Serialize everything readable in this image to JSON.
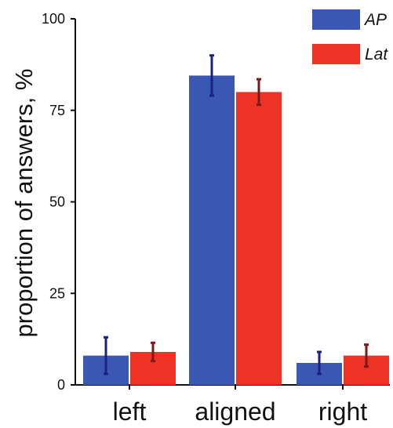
{
  "chart_data": {
    "type": "bar",
    "categories": [
      "left",
      "aligned",
      "right"
    ],
    "series": [
      {
        "name": "AP",
        "values": [
          8,
          84.5,
          6
        ],
        "errors": [
          5,
          5.5,
          3
        ],
        "color": "#3A58B3"
      },
      {
        "name": "Lat",
        "values": [
          9,
          80,
          8
        ],
        "errors": [
          2.5,
          3.5,
          3
        ],
        "color": "#EE3224"
      }
    ],
    "title": "",
    "xlabel": "",
    "ylabel": "proportion of answers, %",
    "ylim": [
      0,
      100
    ],
    "yticks": [
      0,
      25,
      50,
      75,
      100
    ],
    "grid": false,
    "legend_position": "top-right"
  }
}
